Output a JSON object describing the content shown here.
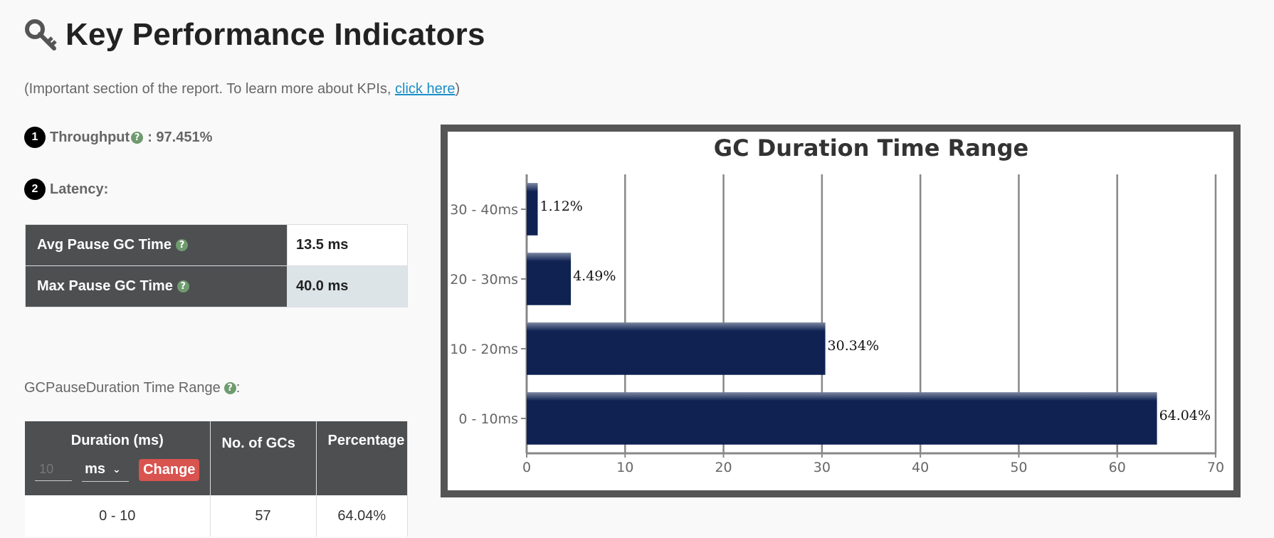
{
  "header": {
    "title": "Key Performance Indicators",
    "icon": "key-icon"
  },
  "subtitle": {
    "prefix": "(Important section of the report. To learn more about KPIs, ",
    "link": "click here",
    "suffix": ")"
  },
  "throughput": {
    "number": "1",
    "label": "Throughput",
    "help": "?",
    "value": ": 97.451%"
  },
  "latency": {
    "number": "2",
    "label": "Latency:",
    "rows": [
      {
        "label": "Avg Pause GC Time",
        "value": "13.5 ms"
      },
      {
        "label": "Max Pause GC Time",
        "value": "40.0 ms"
      }
    ]
  },
  "range_section": {
    "label": "GCPauseDuration Time Range",
    "suffix": ":"
  },
  "dist_table": {
    "headers": {
      "duration": "Duration (ms)",
      "count": "No. of GCs",
      "percentage": "Percentage"
    },
    "controls": {
      "input_value": "10",
      "unit": "ms",
      "button": "Change"
    },
    "rows": [
      {
        "duration": "0 - 10",
        "count": "57",
        "percentage": "64.04%"
      }
    ]
  },
  "chart_data": {
    "type": "bar",
    "orientation": "horizontal",
    "title": "GC Duration Time Range",
    "categories": [
      "30 - 40ms",
      "20 - 30ms",
      "10 - 20ms",
      "0 - 10ms"
    ],
    "values": [
      1.12,
      4.49,
      30.34,
      64.04
    ],
    "data_labels": [
      "1.12%",
      "4.49%",
      "30.34%",
      "64.04%"
    ],
    "xlim": [
      0,
      70
    ],
    "xticks": [
      0,
      10,
      20,
      30,
      40,
      50,
      60,
      70
    ],
    "grid": true,
    "bar_color": "#0f2252"
  },
  "colors": {
    "header_bg": "#4d4f51",
    "help_green": "#6f9b6f",
    "link": "#1a8fc9",
    "button_red": "#d9534f"
  }
}
